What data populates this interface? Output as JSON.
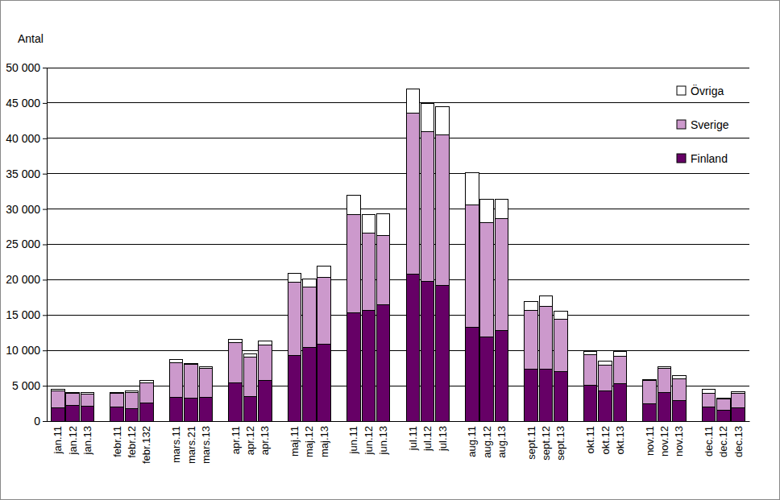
{
  "chart_data": {
    "type": "bar",
    "stacked": true,
    "grid": true,
    "legend": "top-right",
    "y_label": "Antal",
    "ylim": [
      0,
      50000
    ],
    "yticks": [
      0,
      {
        "value": 5000,
        "label": "5 000"
      },
      {
        "value": 10000,
        "label": "10 000"
      },
      {
        "value": 15000,
        "label": "15 000"
      },
      {
        "value": 20000,
        "label": "20 000"
      },
      {
        "value": 25000,
        "label": "25 000"
      },
      {
        "value": 30000,
        "label": "30 000"
      },
      {
        "value": 35000,
        "label": "35 000"
      },
      {
        "value": 40000,
        "label": "40 000"
      },
      {
        "value": 45000,
        "label": "45 000"
      },
      {
        "value": 50000,
        "label": "50 000"
      }
    ],
    "categories": [
      "jan.11",
      "jan.12",
      "jan.13",
      null,
      "febr.11",
      "febr.12",
      "febr.132",
      null,
      "mars.11",
      "mars.21",
      "mars.13",
      null,
      "apr.11",
      "apr.12",
      "apr.13",
      null,
      "maj.11",
      "maj.12",
      "maj.13",
      null,
      "jun.11",
      "jun.12",
      "jun.13",
      null,
      "jul.11",
      "jul.12",
      "jul.13",
      null,
      "aug.11",
      "aug.12",
      "aug.13",
      null,
      "sept.11",
      "sept.12",
      "sept.13",
      null,
      "okt.11",
      "okt.12",
      "okt.13",
      null,
      "nov.11",
      "nov.12",
      "nov.13",
      null,
      "dec.11",
      "dec.12",
      "dec.13"
    ],
    "series": [
      {
        "name": "Finland",
        "color": "#660066",
        "values": [
          1900,
          2200,
          2100,
          null,
          2000,
          1800,
          2600,
          null,
          3400,
          3200,
          3400,
          null,
          5400,
          3500,
          5800,
          null,
          9300,
          10400,
          10900,
          null,
          15300,
          15700,
          16500,
          null,
          20800,
          19800,
          19200,
          null,
          13300,
          11900,
          12800,
          null,
          7300,
          7400,
          7000,
          null,
          5100,
          4300,
          5300,
          null,
          2400,
          4000,
          2900,
          null,
          2000,
          1500,
          1900
        ]
      },
      {
        "name": "Sverige",
        "color": "#cc99cc",
        "values": [
          2400,
          1700,
          1700,
          null,
          1900,
          2200,
          2800,
          null,
          4900,
          4800,
          4100,
          null,
          5700,
          5500,
          5000,
          null,
          10400,
          8600,
          9400,
          null,
          13900,
          10900,
          9800,
          null,
          22800,
          21200,
          21300,
          null,
          17300,
          16200,
          15800,
          null,
          8400,
          8800,
          7400,
          null,
          4300,
          3600,
          3900,
          null,
          3300,
          3500,
          3100,
          null,
          1900,
          1600,
          2000
        ]
      },
      {
        "name": "Övriga",
        "color": "#ffffff",
        "values": [
          150,
          150,
          300,
          null,
          100,
          300,
          300,
          null,
          400,
          100,
          200,
          null,
          500,
          500,
          500,
          null,
          1200,
          1100,
          1600,
          null,
          2800,
          2600,
          3000,
          null,
          3400,
          3900,
          4000,
          null,
          4500,
          3300,
          2800,
          null,
          1200,
          1500,
          1100,
          null,
          500,
          600,
          700,
          null,
          200,
          200,
          400,
          null,
          600,
          200,
          300
        ]
      }
    ]
  }
}
